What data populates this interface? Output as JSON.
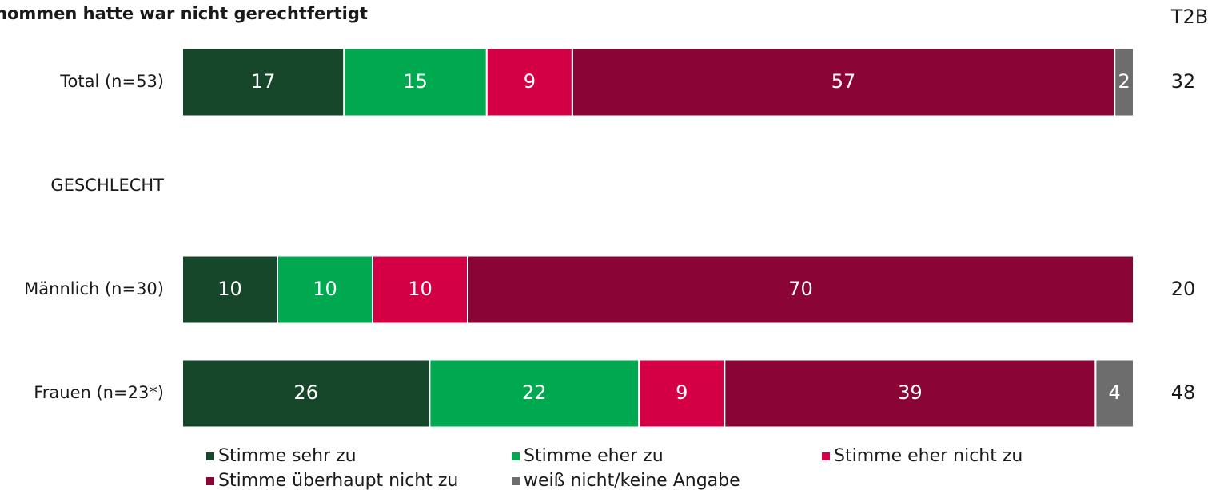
{
  "chart_data": {
    "type": "stacked-bar-horizontal",
    "title": "hommen hatte war nicht gerechtfertigt",
    "categories": [
      "Total (n=53)",
      "GESCHLECHT",
      "Männlich (n=30)",
      "Frauen (n=23*)"
    ],
    "series": [
      {
        "name": "Stimme sehr zu",
        "color": "#17472a",
        "values": [
          17,
          null,
          10,
          26
        ]
      },
      {
        "name": "Stimme eher zu",
        "color": "#00a84f",
        "values": [
          15,
          null,
          10,
          22
        ]
      },
      {
        "name": "Stimme eher nicht zu",
        "color": "#d40045",
        "values": [
          9,
          null,
          10,
          9
        ]
      },
      {
        "name": "Stimme überhaupt nicht zu",
        "color": "#8a0535",
        "values": [
          57,
          null,
          70,
          39
        ]
      },
      {
        "name": "weiß nicht/keine Angabe",
        "color": "#6d6d6d",
        "values": [
          2,
          null,
          null,
          4
        ]
      }
    ],
    "xlim": [
      0,
      100
    ],
    "t2b": {
      "label": "T2B",
      "values": [
        32,
        null,
        20,
        48
      ]
    }
  }
}
